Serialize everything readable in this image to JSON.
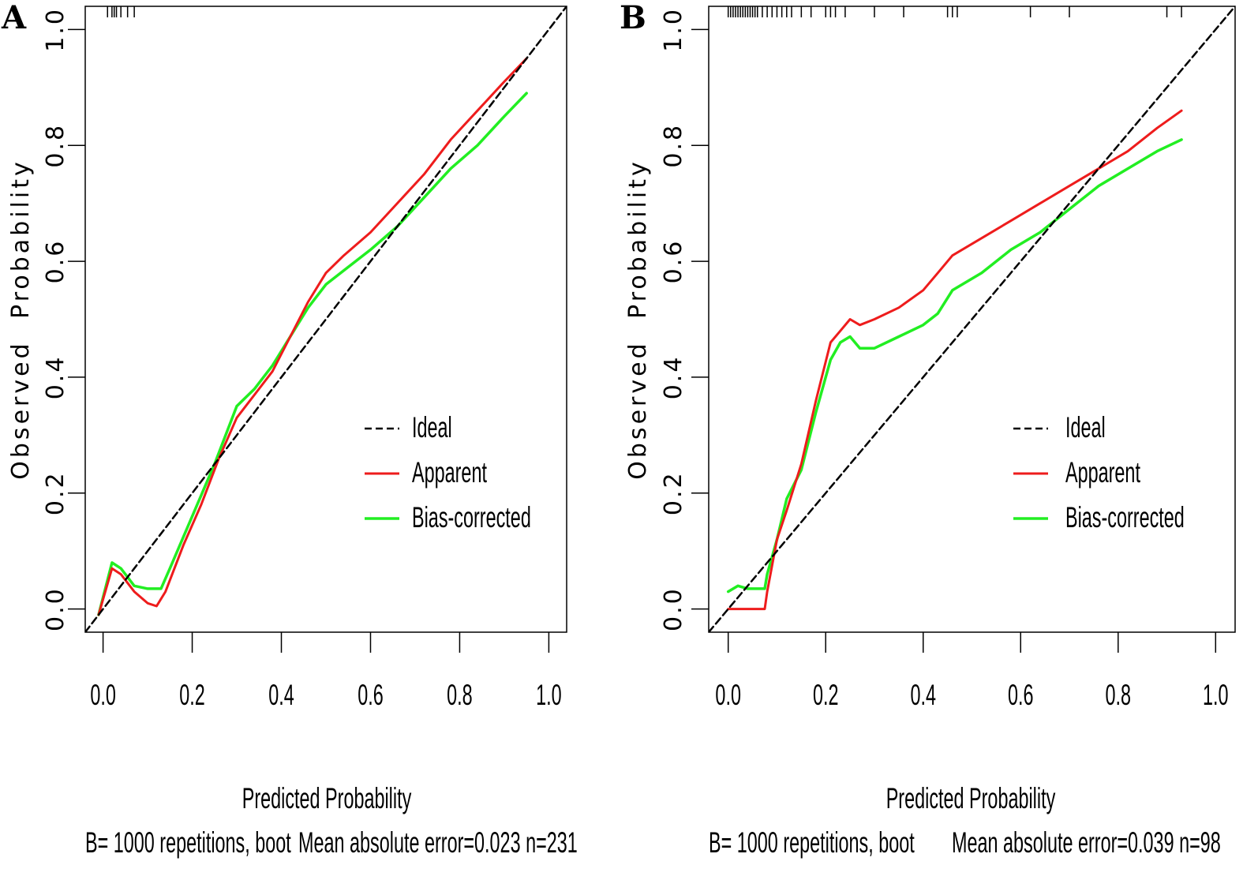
{
  "chart_data": [
    {
      "panel": "A",
      "type": "line",
      "xlabel": "Predicted Probability",
      "ylabel": "Observed Probability",
      "xlim": [
        -0.04,
        1.04
      ],
      "ylim": [
        -0.04,
        1.04
      ],
      "xticks": [
        "0.0",
        "0.2",
        "0.4",
        "0.6",
        "0.8",
        "1.0"
      ],
      "yticks": [
        "0.0",
        "0.2",
        "0.4",
        "0.6",
        "0.8",
        "1.0"
      ],
      "subtitle_left": "B= 1000 repetitions, boot",
      "subtitle_right": "Mean absolute error=0.023 n=231",
      "legend": [
        "Ideal",
        "Apparent",
        "Bias-corrected"
      ],
      "colors": {
        "ideal": "#000000",
        "apparent": "#ee1c1c",
        "bias": "#22ee22"
      },
      "series": [
        {
          "name": "Ideal",
          "x": [
            -0.04,
            1.04
          ],
          "y": [
            -0.04,
            1.04
          ]
        },
        {
          "name": "Apparent",
          "x": [
            -0.01,
            0.02,
            0.04,
            0.07,
            0.1,
            0.12,
            0.14,
            0.18,
            0.22,
            0.26,
            0.3,
            0.34,
            0.38,
            0.42,
            0.46,
            0.5,
            0.54,
            0.6,
            0.66,
            0.72,
            0.78,
            0.84,
            0.9,
            0.95
          ],
          "y": [
            -0.01,
            0.07,
            0.06,
            0.03,
            0.01,
            0.005,
            0.03,
            0.11,
            0.18,
            0.26,
            0.33,
            0.37,
            0.41,
            0.47,
            0.53,
            0.58,
            0.61,
            0.65,
            0.7,
            0.75,
            0.81,
            0.86,
            0.91,
            0.95
          ]
        },
        {
          "name": "Bias-corrected",
          "x": [
            -0.01,
            0.02,
            0.04,
            0.07,
            0.1,
            0.13,
            0.15,
            0.2,
            0.25,
            0.3,
            0.34,
            0.38,
            0.42,
            0.46,
            0.5,
            0.55,
            0.6,
            0.66,
            0.72,
            0.78,
            0.84,
            0.9,
            0.95
          ],
          "y": [
            -0.01,
            0.08,
            0.07,
            0.04,
            0.035,
            0.035,
            0.07,
            0.16,
            0.25,
            0.35,
            0.38,
            0.42,
            0.47,
            0.52,
            0.56,
            0.59,
            0.62,
            0.66,
            0.71,
            0.76,
            0.8,
            0.85,
            0.89
          ]
        }
      ],
      "rug": [
        0.01,
        0.02,
        0.025,
        0.03,
        0.04,
        0.055,
        0.07
      ]
    },
    {
      "panel": "B",
      "type": "line",
      "xlabel": "Predicted Probability",
      "ylabel": "Observed Probability",
      "xlim": [
        -0.04,
        1.04
      ],
      "ylim": [
        -0.04,
        1.04
      ],
      "xticks": [
        "0.0",
        "0.2",
        "0.4",
        "0.6",
        "0.8",
        "1.0"
      ],
      "yticks": [
        "0.0",
        "0.2",
        "0.4",
        "0.6",
        "0.8",
        "1.0"
      ],
      "subtitle_left": "B= 1000 repetitions, boot",
      "subtitle_right": "Mean absolute error=0.039 n=98",
      "legend": [
        "Ideal",
        "Apparent",
        "Bias-corrected"
      ],
      "colors": {
        "ideal": "#000000",
        "apparent": "#ee1c1c",
        "bias": "#22ee22"
      },
      "series": [
        {
          "name": "Ideal",
          "x": [
            -0.04,
            1.04
          ],
          "y": [
            -0.04,
            1.04
          ]
        },
        {
          "name": "Apparent",
          "x": [
            0.0,
            0.05,
            0.075,
            0.08,
            0.1,
            0.12,
            0.15,
            0.18,
            0.21,
            0.23,
            0.25,
            0.27,
            0.3,
            0.35,
            0.4,
            0.43,
            0.46,
            0.52,
            0.58,
            0.64,
            0.7,
            0.76,
            0.82,
            0.88,
            0.93
          ],
          "y": [
            0.0,
            0.0,
            0.0,
            0.03,
            0.12,
            0.17,
            0.25,
            0.36,
            0.46,
            0.48,
            0.5,
            0.49,
            0.5,
            0.52,
            0.55,
            0.58,
            0.61,
            0.64,
            0.67,
            0.7,
            0.73,
            0.76,
            0.79,
            0.83,
            0.86
          ]
        },
        {
          "name": "Bias-corrected",
          "x": [
            0.0,
            0.02,
            0.04,
            0.075,
            0.08,
            0.1,
            0.12,
            0.15,
            0.18,
            0.21,
            0.23,
            0.25,
            0.27,
            0.3,
            0.35,
            0.4,
            0.43,
            0.46,
            0.52,
            0.58,
            0.64,
            0.7,
            0.76,
            0.82,
            0.88,
            0.93
          ],
          "y": [
            0.03,
            0.04,
            0.035,
            0.035,
            0.06,
            0.12,
            0.19,
            0.24,
            0.34,
            0.43,
            0.46,
            0.47,
            0.45,
            0.45,
            0.47,
            0.49,
            0.51,
            0.55,
            0.58,
            0.62,
            0.65,
            0.69,
            0.73,
            0.76,
            0.79,
            0.81
          ]
        }
      ],
      "rug": [
        0.0,
        0.005,
        0.01,
        0.015,
        0.02,
        0.025,
        0.03,
        0.035,
        0.04,
        0.045,
        0.05,
        0.055,
        0.06,
        0.07,
        0.08,
        0.09,
        0.1,
        0.11,
        0.12,
        0.13,
        0.15,
        0.17,
        0.2,
        0.21,
        0.22,
        0.24,
        0.3,
        0.36,
        0.45,
        0.46,
        0.47,
        0.62,
        0.7,
        0.9,
        0.93
      ]
    }
  ]
}
